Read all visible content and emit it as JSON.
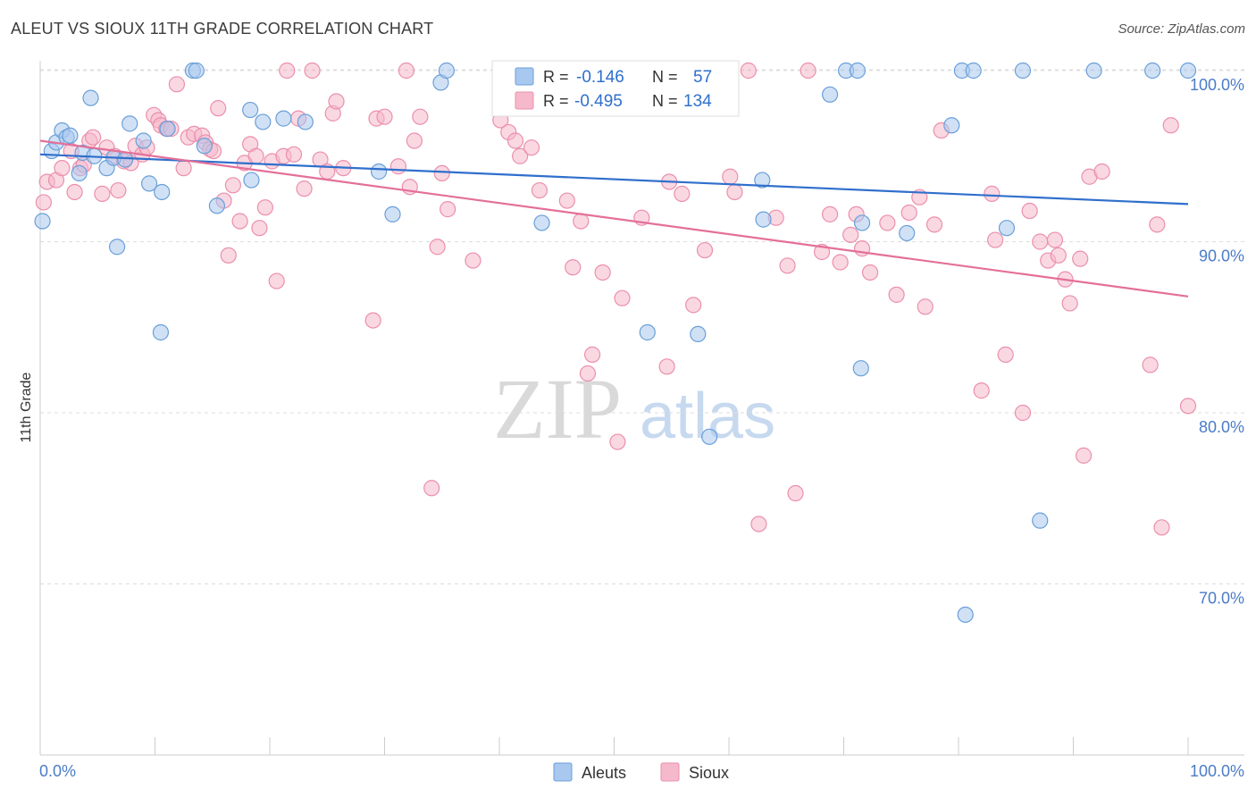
{
  "header": {
    "title": "ALEUT VS SIOUX 11TH GRADE CORRELATION CHART",
    "source": "Source: ZipAtlas.com"
  },
  "watermark": {
    "zip": "ZIP",
    "atlas": "atlas"
  },
  "legend_stats": {
    "aleuts": {
      "r_label": "R =",
      "r_value": "-0.146",
      "n_label": "N =",
      "n_value": "57"
    },
    "sioux": {
      "r_label": "R =",
      "r_value": "-0.495",
      "n_label": "N =",
      "n_value": "134"
    }
  },
  "colors": {
    "aleuts_fill": "#a9c8ef",
    "aleuts_stroke": "#6a9fd8",
    "aleuts_line": "#2f6fcc",
    "sioux_fill": "#f6b8cb",
    "sioux_stroke": "#eb8fad",
    "sioux_line": "#e46f99",
    "tick_text": "#4a7cc7",
    "grid": "#dddddd"
  },
  "chart_data": {
    "type": "scatter",
    "title": "ALEUT VS SIOUX 11TH GRADE CORRELATION CHART",
    "xlabel": "",
    "ylabel": "11th Grade",
    "xlim": [
      0,
      100
    ],
    "ylim": [
      60,
      100.5
    ],
    "x_tick_labels": [
      "0.0%",
      "100.0%"
    ],
    "y_ticks": [
      70,
      80,
      90,
      100
    ],
    "y_tick_labels": [
      "70.0%",
      "80.0%",
      "90.0%",
      "100.0%"
    ],
    "grid": true,
    "legend": "bottom-center",
    "series": [
      {
        "name": "Aleuts",
        "trend": {
          "x": [
            0,
            100
          ],
          "y": [
            95.1,
            92.2
          ]
        },
        "points": [
          [
            0.2,
            91.2
          ],
          [
            1.0,
            95.3
          ],
          [
            1.4,
            95.8
          ],
          [
            1.9,
            96.5
          ],
          [
            2.3,
            96.1
          ],
          [
            2.6,
            96.2
          ],
          [
            3.4,
            94.0
          ],
          [
            3.7,
            95.2
          ],
          [
            4.4,
            98.4
          ],
          [
            4.7,
            95.0
          ],
          [
            5.8,
            94.3
          ],
          [
            6.4,
            94.9
          ],
          [
            6.7,
            89.7
          ],
          [
            7.4,
            94.8
          ],
          [
            7.8,
            96.9
          ],
          [
            9.0,
            95.9
          ],
          [
            9.5,
            93.4
          ],
          [
            10.5,
            84.7
          ],
          [
            10.6,
            92.9
          ],
          [
            11.1,
            96.6
          ],
          [
            13.3,
            100.0
          ],
          [
            13.6,
            100.0
          ],
          [
            14.3,
            95.6
          ],
          [
            15.4,
            92.1
          ],
          [
            18.3,
            97.7
          ],
          [
            18.4,
            93.6
          ],
          [
            19.4,
            97.0
          ],
          [
            21.2,
            97.2
          ],
          [
            23.1,
            97.0
          ],
          [
            29.5,
            94.1
          ],
          [
            30.7,
            91.6
          ],
          [
            34.9,
            99.3
          ],
          [
            35.4,
            100.0
          ],
          [
            43.7,
            91.1
          ],
          [
            51.9,
            100.0
          ],
          [
            52.3,
            100.0
          ],
          [
            52.9,
            84.7
          ],
          [
            55.7,
            100.0
          ],
          [
            57.3,
            84.6
          ],
          [
            58.3,
            78.6
          ],
          [
            62.9,
            93.6
          ],
          [
            63.0,
            91.3
          ],
          [
            68.8,
            98.6
          ],
          [
            70.2,
            100.0
          ],
          [
            71.2,
            100.0
          ],
          [
            71.6,
            91.1
          ],
          [
            71.5,
            82.6
          ],
          [
            75.5,
            90.5
          ],
          [
            79.4,
            96.8
          ],
          [
            80.3,
            100.0
          ],
          [
            80.6,
            68.2
          ],
          [
            81.3,
            100.0
          ],
          [
            84.2,
            90.8
          ],
          [
            85.6,
            100.0
          ],
          [
            87.1,
            73.7
          ],
          [
            91.8,
            100.0
          ],
          [
            96.9,
            100.0
          ],
          [
            100.0,
            100.0
          ]
        ]
      },
      {
        "name": "Sioux",
        "trend": {
          "x": [
            0,
            100
          ],
          "y": [
            95.9,
            86.8
          ]
        },
        "points": [
          [
            0.3,
            92.3
          ],
          [
            0.6,
            93.5
          ],
          [
            1.4,
            93.6
          ],
          [
            1.9,
            94.3
          ],
          [
            2.7,
            95.3
          ],
          [
            3.0,
            92.9
          ],
          [
            3.5,
            94.3
          ],
          [
            3.8,
            94.5
          ],
          [
            4.3,
            95.9
          ],
          [
            4.6,
            96.1
          ],
          [
            5.4,
            92.8
          ],
          [
            5.8,
            95.5
          ],
          [
            6.5,
            95.0
          ],
          [
            6.8,
            93.0
          ],
          [
            7.3,
            94.7
          ],
          [
            7.9,
            94.6
          ],
          [
            8.3,
            95.6
          ],
          [
            8.9,
            95.1
          ],
          [
            9.3,
            95.5
          ],
          [
            9.9,
            97.4
          ],
          [
            10.3,
            97.1
          ],
          [
            10.5,
            96.8
          ],
          [
            11.0,
            96.6
          ],
          [
            11.4,
            96.6
          ],
          [
            11.9,
            99.2
          ],
          [
            12.5,
            94.3
          ],
          [
            12.9,
            96.1
          ],
          [
            13.4,
            96.3
          ],
          [
            14.1,
            96.2
          ],
          [
            14.4,
            95.8
          ],
          [
            14.8,
            95.4
          ],
          [
            15.1,
            95.3
          ],
          [
            15.5,
            97.8
          ],
          [
            16.0,
            92.4
          ],
          [
            16.4,
            89.2
          ],
          [
            16.8,
            93.3
          ],
          [
            17.4,
            91.2
          ],
          [
            17.8,
            94.6
          ],
          [
            18.3,
            95.7
          ],
          [
            18.8,
            95.0
          ],
          [
            19.1,
            90.8
          ],
          [
            19.6,
            92.0
          ],
          [
            20.2,
            94.7
          ],
          [
            20.6,
            87.7
          ],
          [
            21.2,
            95.0
          ],
          [
            21.5,
            100.0
          ],
          [
            22.1,
            95.1
          ],
          [
            22.5,
            97.2
          ],
          [
            23.0,
            93.1
          ],
          [
            23.7,
            100.0
          ],
          [
            24.4,
            94.8
          ],
          [
            25.0,
            94.1
          ],
          [
            25.5,
            97.5
          ],
          [
            25.8,
            98.2
          ],
          [
            26.4,
            94.3
          ],
          [
            29.0,
            85.4
          ],
          [
            29.3,
            97.2
          ],
          [
            30.0,
            97.3
          ],
          [
            31.2,
            94.4
          ],
          [
            31.9,
            100.0
          ],
          [
            32.2,
            93.2
          ],
          [
            32.6,
            95.9
          ],
          [
            33.1,
            97.3
          ],
          [
            34.1,
            75.6
          ],
          [
            34.6,
            89.7
          ],
          [
            35.0,
            94.0
          ],
          [
            35.5,
            91.9
          ],
          [
            37.7,
            88.9
          ],
          [
            40.1,
            97.1
          ],
          [
            40.8,
            96.4
          ],
          [
            41.4,
            95.9
          ],
          [
            41.8,
            95.0
          ],
          [
            42.8,
            95.5
          ],
          [
            43.5,
            93.0
          ],
          [
            45.9,
            92.4
          ],
          [
            46.4,
            88.5
          ],
          [
            47.1,
            91.2
          ],
          [
            47.7,
            82.3
          ],
          [
            48.1,
            83.4
          ],
          [
            49.0,
            88.2
          ],
          [
            50.3,
            78.3
          ],
          [
            50.7,
            86.7
          ],
          [
            52.4,
            91.4
          ],
          [
            54.6,
            82.7
          ],
          [
            54.8,
            93.5
          ],
          [
            55.9,
            92.8
          ],
          [
            56.9,
            86.3
          ],
          [
            57.9,
            89.5
          ],
          [
            60.1,
            93.8
          ],
          [
            60.5,
            92.9
          ],
          [
            61.7,
            100.0
          ],
          [
            62.6,
            73.5
          ],
          [
            64.1,
            91.4
          ],
          [
            65.1,
            88.6
          ],
          [
            65.8,
            75.3
          ],
          [
            66.9,
            100.0
          ],
          [
            68.1,
            89.4
          ],
          [
            68.8,
            91.6
          ],
          [
            69.7,
            88.8
          ],
          [
            70.6,
            90.4
          ],
          [
            71.1,
            91.6
          ],
          [
            71.6,
            89.6
          ],
          [
            72.3,
            88.2
          ],
          [
            73.8,
            91.1
          ],
          [
            74.6,
            86.9
          ],
          [
            75.7,
            91.7
          ],
          [
            76.6,
            92.6
          ],
          [
            77.1,
            86.2
          ],
          [
            77.9,
            91.0
          ],
          [
            78.5,
            96.5
          ],
          [
            82.0,
            81.3
          ],
          [
            82.9,
            92.8
          ],
          [
            83.2,
            90.1
          ],
          [
            84.1,
            83.4
          ],
          [
            85.6,
            80.0
          ],
          [
            86.2,
            91.8
          ],
          [
            87.1,
            90.0
          ],
          [
            87.8,
            88.9
          ],
          [
            88.4,
            90.1
          ],
          [
            88.7,
            89.2
          ],
          [
            89.3,
            87.8
          ],
          [
            89.7,
            86.4
          ],
          [
            90.6,
            89.0
          ],
          [
            90.9,
            77.5
          ],
          [
            91.4,
            93.8
          ],
          [
            92.5,
            94.1
          ],
          [
            96.7,
            82.8
          ],
          [
            97.3,
            91.0
          ],
          [
            97.7,
            73.3
          ],
          [
            98.5,
            96.8
          ],
          [
            100.0,
            80.4
          ]
        ]
      }
    ]
  },
  "bottom_legend": [
    {
      "label": "Aleuts"
    },
    {
      "label": "Sioux"
    }
  ]
}
